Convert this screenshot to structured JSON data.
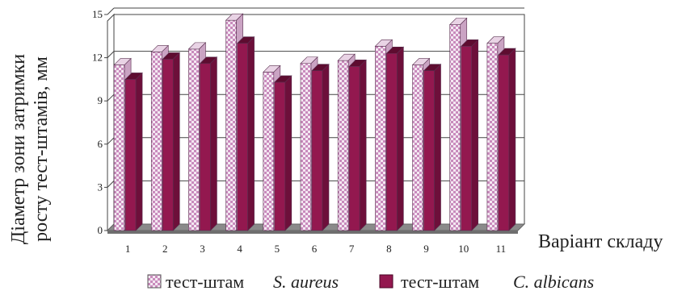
{
  "chart_data": {
    "type": "bar",
    "categories": [
      "1",
      "2",
      "3",
      "4",
      "5",
      "6",
      "7",
      "8",
      "9",
      "10",
      "11"
    ],
    "series": [
      {
        "name": "S. aureus",
        "values": [
          11.5,
          12.4,
          12.6,
          14.6,
          11.0,
          11.6,
          11.8,
          12.8,
          11.5,
          14.3,
          13.0
        ]
      },
      {
        "name": "C. albicans",
        "values": [
          10.5,
          11.9,
          11.6,
          13.0,
          10.3,
          11.1,
          11.4,
          12.3,
          11.1,
          12.8,
          12.2
        ]
      }
    ],
    "yticks": [
      "0",
      "3",
      "6",
      "9",
      "12",
      "15"
    ],
    "ylim": [
      0,
      15
    ],
    "ylabel_line1": "Діаметр зони затримки",
    "ylabel_line2": "росту тест-штамів, мм",
    "xlabel": "Варіант складу",
    "legend": [
      {
        "prefix": "тест-штам",
        "species": "S. aureus"
      },
      {
        "prefix": "тест-штам",
        "species": "C. albicans"
      }
    ],
    "grid": true,
    "legend_position": "bottom",
    "colors": {
      "series1_fill": "#f4e8f2",
      "series1_pattern": "#b57aa8",
      "series2_fill": "#93184f",
      "series2_top": "#5e0c30",
      "floor": "#8a8a8a",
      "grid": "#444444"
    }
  }
}
